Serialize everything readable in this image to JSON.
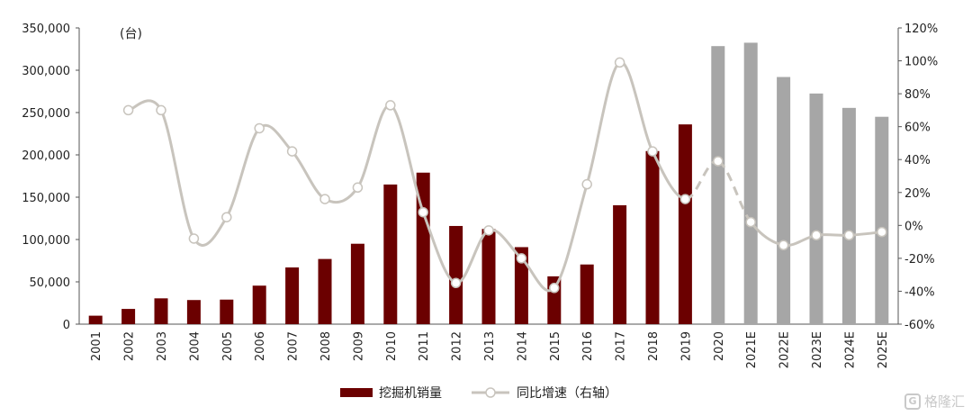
{
  "chart_data": {
    "type": "bar",
    "unit_label": "(台)",
    "categories": [
      "2001",
      "2002",
      "2003",
      "2004",
      "2005",
      "2006",
      "2007",
      "2008",
      "2009",
      "2010",
      "2011",
      "2012",
      "2013",
      "2014",
      "2015",
      "2016",
      "2017",
      "2018",
      "2019",
      "2020",
      "2021E",
      "2022E",
      "2023E",
      "2024E",
      "2025E"
    ],
    "series": [
      {
        "name": "挖掘机销量",
        "type": "bar",
        "axis": "left",
        "color": "#6b0000",
        "forecast_color": "#a6a6a6",
        "values": [
          10000,
          18000,
          30500,
          28500,
          29000,
          45500,
          67000,
          77000,
          95000,
          165000,
          179000,
          116000,
          112500,
          91000,
          56500,
          70500,
          140500,
          204500,
          236000,
          328500,
          332500,
          292000,
          272500,
          255500,
          245000
        ]
      },
      {
        "name": "同比增速（右轴）",
        "type": "line",
        "axis": "right",
        "unit": "%",
        "color": "#c8c4bd",
        "values": [
          null,
          70,
          70,
          -8,
          5,
          59,
          45,
          16,
          23,
          73,
          8,
          -35,
          -3,
          -20,
          -38,
          25,
          99,
          45,
          16,
          39,
          2,
          -12,
          -6,
          -6,
          -4
        ]
      }
    ],
    "actual_end_index": 18,
    "dashed_segment": [
      18,
      20
    ],
    "left_axis": {
      "min": 0,
      "max": 350000,
      "step": 50000,
      "ticks": [
        "0",
        "50,000",
        "100,000",
        "150,000",
        "200,000",
        "250,000",
        "300,000",
        "350,000"
      ]
    },
    "right_axis": {
      "min": -60,
      "max": 120,
      "step": 20,
      "ticks": [
        "-60%",
        "-40%",
        "-20%",
        "0%",
        "20%",
        "40%",
        "60%",
        "80%",
        "100%",
        "120%"
      ]
    },
    "legend_position": "bottom-center"
  },
  "watermark": {
    "text": "格隆汇",
    "icon": "logo-icon"
  }
}
